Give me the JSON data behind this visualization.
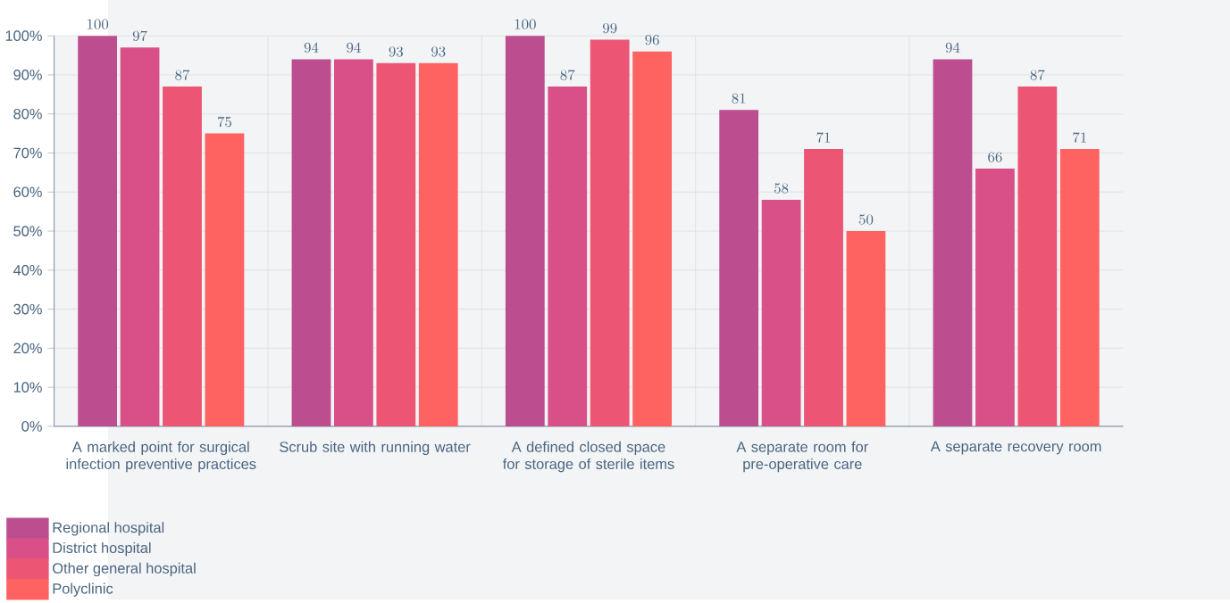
{
  "chart_data": {
    "type": "bar",
    "categories": [
      "A marked point for surgical infection preventive practices",
      "Scrub site with running water",
      "A defined closed space for storage of sterile items",
      "A separate room for pre-operative care",
      "A separate recovery room"
    ],
    "series": [
      {
        "name": "Regional hospital",
        "color": "#bc4e8f",
        "values": [
          100,
          94,
          100,
          81,
          94
        ]
      },
      {
        "name": "District hospital",
        "color": "#d85087",
        "values": [
          97,
          94,
          87,
          58,
          66
        ]
      },
      {
        "name": "Other general hospital",
        "color": "#ec5574",
        "values": [
          87,
          93,
          99,
          71,
          87
        ]
      },
      {
        "name": "Polyclinic",
        "color": "#ff6361",
        "values": [
          75,
          93,
          96,
          50,
          71
        ]
      }
    ],
    "ylim": [
      0,
      100
    ],
    "yticks": [
      {
        "value": 0,
        "label": "0%"
      },
      {
        "value": 10,
        "label": "10%"
      },
      {
        "value": 20,
        "label": "20%"
      },
      {
        "value": 30,
        "label": "30%"
      },
      {
        "value": 40,
        "label": "40%"
      },
      {
        "value": 50,
        "label": "50%"
      },
      {
        "value": 60,
        "label": "60%"
      },
      {
        "value": 70,
        "label": "70%"
      },
      {
        "value": 80,
        "label": "80%"
      },
      {
        "value": 90,
        "label": "90%"
      },
      {
        "value": 100,
        "label": "100%"
      }
    ],
    "grid": true,
    "legend": "bottom left",
    "data_labels": true
  }
}
